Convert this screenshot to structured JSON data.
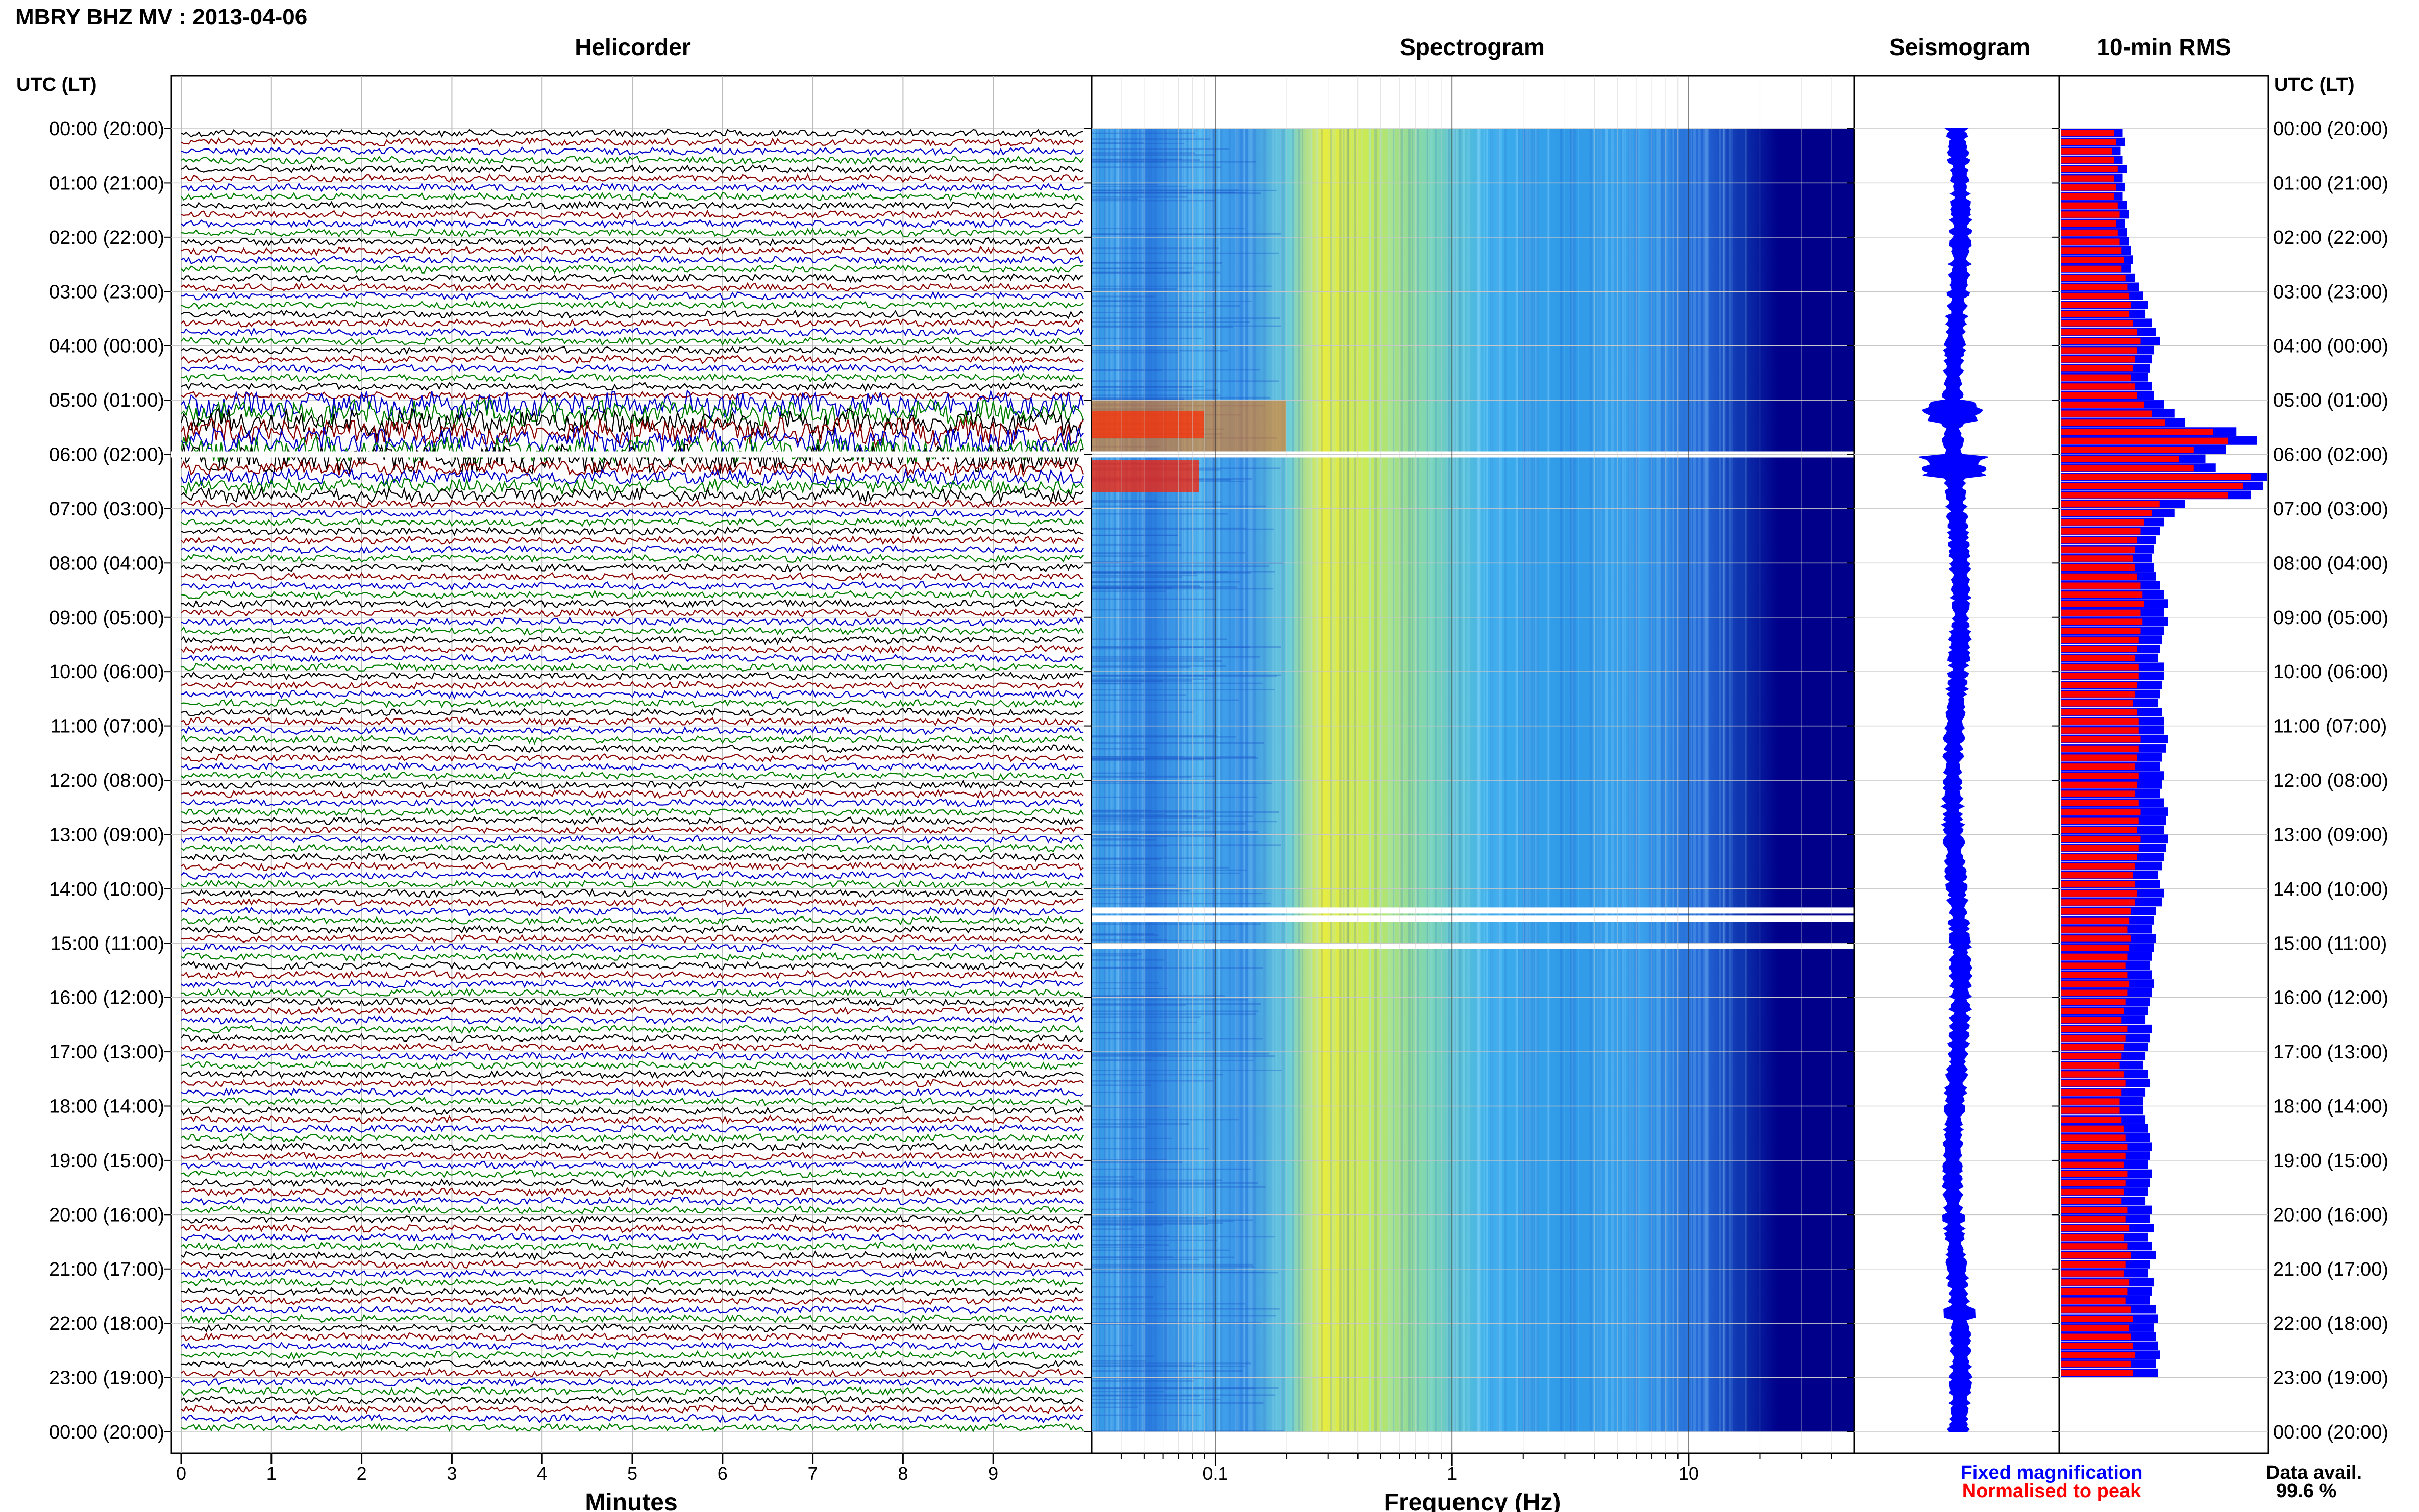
{
  "header": {
    "title": "MBRY BHZ MV : 2013-04-06"
  },
  "panels": {
    "helicorder": "Helicorder",
    "spectrogram": "Spectrogram",
    "seismogram": "Seismogram",
    "rms": "10-min RMS"
  },
  "axis": {
    "time_header": "UTC (LT)",
    "minutes_label": "Minutes",
    "frequency_label": "Frequency (Hz)",
    "minute_ticks": [
      "0",
      "1",
      "2",
      "3",
      "4",
      "5",
      "6",
      "7",
      "8",
      "9"
    ],
    "frequency_ticks": [
      "0.1",
      "1",
      "10"
    ],
    "hour_labels": [
      "00:00 (20:00)",
      "01:00 (21:00)",
      "02:00 (22:00)",
      "03:00 (23:00)",
      "04:00 (00:00)",
      "05:00 (01:00)",
      "06:00 (02:00)",
      "07:00 (03:00)",
      "08:00 (04:00)",
      "09:00 (05:00)",
      "10:00 (06:00)",
      "11:00 (07:00)",
      "12:00 (08:00)",
      "13:00 (09:00)",
      "14:00 (10:00)",
      "15:00 (11:00)",
      "16:00 (12:00)",
      "17:00 (13:00)",
      "18:00 (14:00)",
      "19:00 (15:00)",
      "20:00 (16:00)",
      "21:00 (17:00)",
      "22:00 (18:00)",
      "23:00 (19:00)",
      "00:00 (20:00)"
    ]
  },
  "legend": {
    "fixed": "Fixed magnification",
    "normalised": "Normalised to peak",
    "fixed_color": "#0000ff",
    "normalised_color": "#ff0000"
  },
  "availability": {
    "label": "Data avail.",
    "value": "99.6 %"
  },
  "colors": {
    "trace_colors": [
      "#000000",
      "#8b0000",
      "#0000cc",
      "#008000"
    ],
    "spec_low": "#00008b",
    "spec_high": "#ff0000"
  },
  "chart_data": {
    "type": "heatmap",
    "x_minutes_range": [
      0,
      10
    ],
    "frequency_range_hz": [
      0.03,
      50
    ],
    "frequency_scale": "log",
    "time_range_hours": [
      0,
      24
    ],
    "gaps_hours": [
      6.0,
      14.4,
      14.55,
      15.05
    ],
    "rms_bins_per_hour": 6,
    "rms_fixed_relative": [
      0.3,
      0.31,
      0.29,
      0.3,
      0.32,
      0.3,
      0.31,
      0.3,
      0.32,
      0.33,
      0.31,
      0.32,
      0.33,
      0.34,
      0.35,
      0.34,
      0.36,
      0.38,
      0.4,
      0.42,
      0.41,
      0.44,
      0.46,
      0.48,
      0.45,
      0.44,
      0.43,
      0.42,
      0.44,
      0.45,
      0.5,
      0.55,
      0.6,
      0.85,
      0.95,
      0.8,
      0.7,
      0.75,
      1.0,
      0.98,
      0.92,
      0.6,
      0.55,
      0.5,
      0.48,
      0.46,
      0.45,
      0.44,
      0.45,
      0.46,
      0.48,
      0.5,
      0.52,
      0.5,
      0.52,
      0.5,
      0.49,
      0.48,
      0.47,
      0.5,
      0.5,
      0.49,
      0.48,
      0.47,
      0.49,
      0.5,
      0.5,
      0.52,
      0.51,
      0.49,
      0.48,
      0.5,
      0.49,
      0.48,
      0.5,
      0.52,
      0.51,
      0.5,
      0.52,
      0.51,
      0.5,
      0.49,
      0.47,
      0.48,
      0.5,
      0.49,
      0.46,
      0.45,
      0.44,
      0.46,
      0.45,
      0.44,
      0.43,
      0.44,
      0.45,
      0.44,
      0.43,
      0.42,
      0.41,
      0.44,
      0.43,
      0.42,
      0.41,
      0.4,
      0.42,
      0.43,
      0.41,
      0.4,
      0.4,
      0.41,
      0.42,
      0.43,
      0.44,
      0.43,
      0.42,
      0.44,
      0.43,
      0.42,
      0.41,
      0.44,
      0.43,
      0.45,
      0.42,
      0.44,
      0.46,
      0.43,
      0.42,
      0.45,
      0.44,
      0.43,
      0.46,
      0.47,
      0.45,
      0.46,
      0.47,
      0.48,
      0.46,
      0.47
    ],
    "rms_normalised_relative": [
      0.28,
      0.29,
      0.27,
      0.28,
      0.3,
      0.28,
      0.29,
      0.28,
      0.3,
      0.31,
      0.29,
      0.3,
      0.31,
      0.32,
      0.33,
      0.32,
      0.34,
      0.35,
      0.36,
      0.37,
      0.36,
      0.38,
      0.4,
      0.42,
      0.4,
      0.39,
      0.38,
      0.37,
      0.39,
      0.4,
      0.44,
      0.48,
      0.55,
      0.8,
      0.88,
      0.7,
      0.62,
      0.7,
      1.0,
      0.96,
      0.88,
      0.52,
      0.48,
      0.44,
      0.42,
      0.4,
      0.39,
      0.38,
      0.39,
      0.4,
      0.42,
      0.43,
      0.44,
      0.42,
      0.43,
      0.42,
      0.41,
      0.4,
      0.39,
      0.41,
      0.41,
      0.4,
      0.39,
      0.38,
      0.4,
      0.41,
      0.41,
      0.42,
      0.41,
      0.4,
      0.39,
      0.41,
      0.4,
      0.39,
      0.41,
      0.42,
      0.41,
      0.4,
      0.42,
      0.41,
      0.4,
      0.39,
      0.38,
      0.39,
      0.4,
      0.39,
      0.37,
      0.36,
      0.35,
      0.37,
      0.36,
      0.35,
      0.34,
      0.35,
      0.36,
      0.35,
      0.34,
      0.33,
      0.32,
      0.35,
      0.34,
      0.33,
      0.32,
      0.31,
      0.33,
      0.34,
      0.32,
      0.31,
      0.31,
      0.32,
      0.33,
      0.34,
      0.35,
      0.34,
      0.33,
      0.35,
      0.34,
      0.33,
      0.32,
      0.35,
      0.34,
      0.36,
      0.33,
      0.35,
      0.37,
      0.34,
      0.33,
      0.36,
      0.35,
      0.34,
      0.37,
      0.38,
      0.36,
      0.37,
      0.38,
      0.39,
      0.37,
      0.38
    ]
  }
}
